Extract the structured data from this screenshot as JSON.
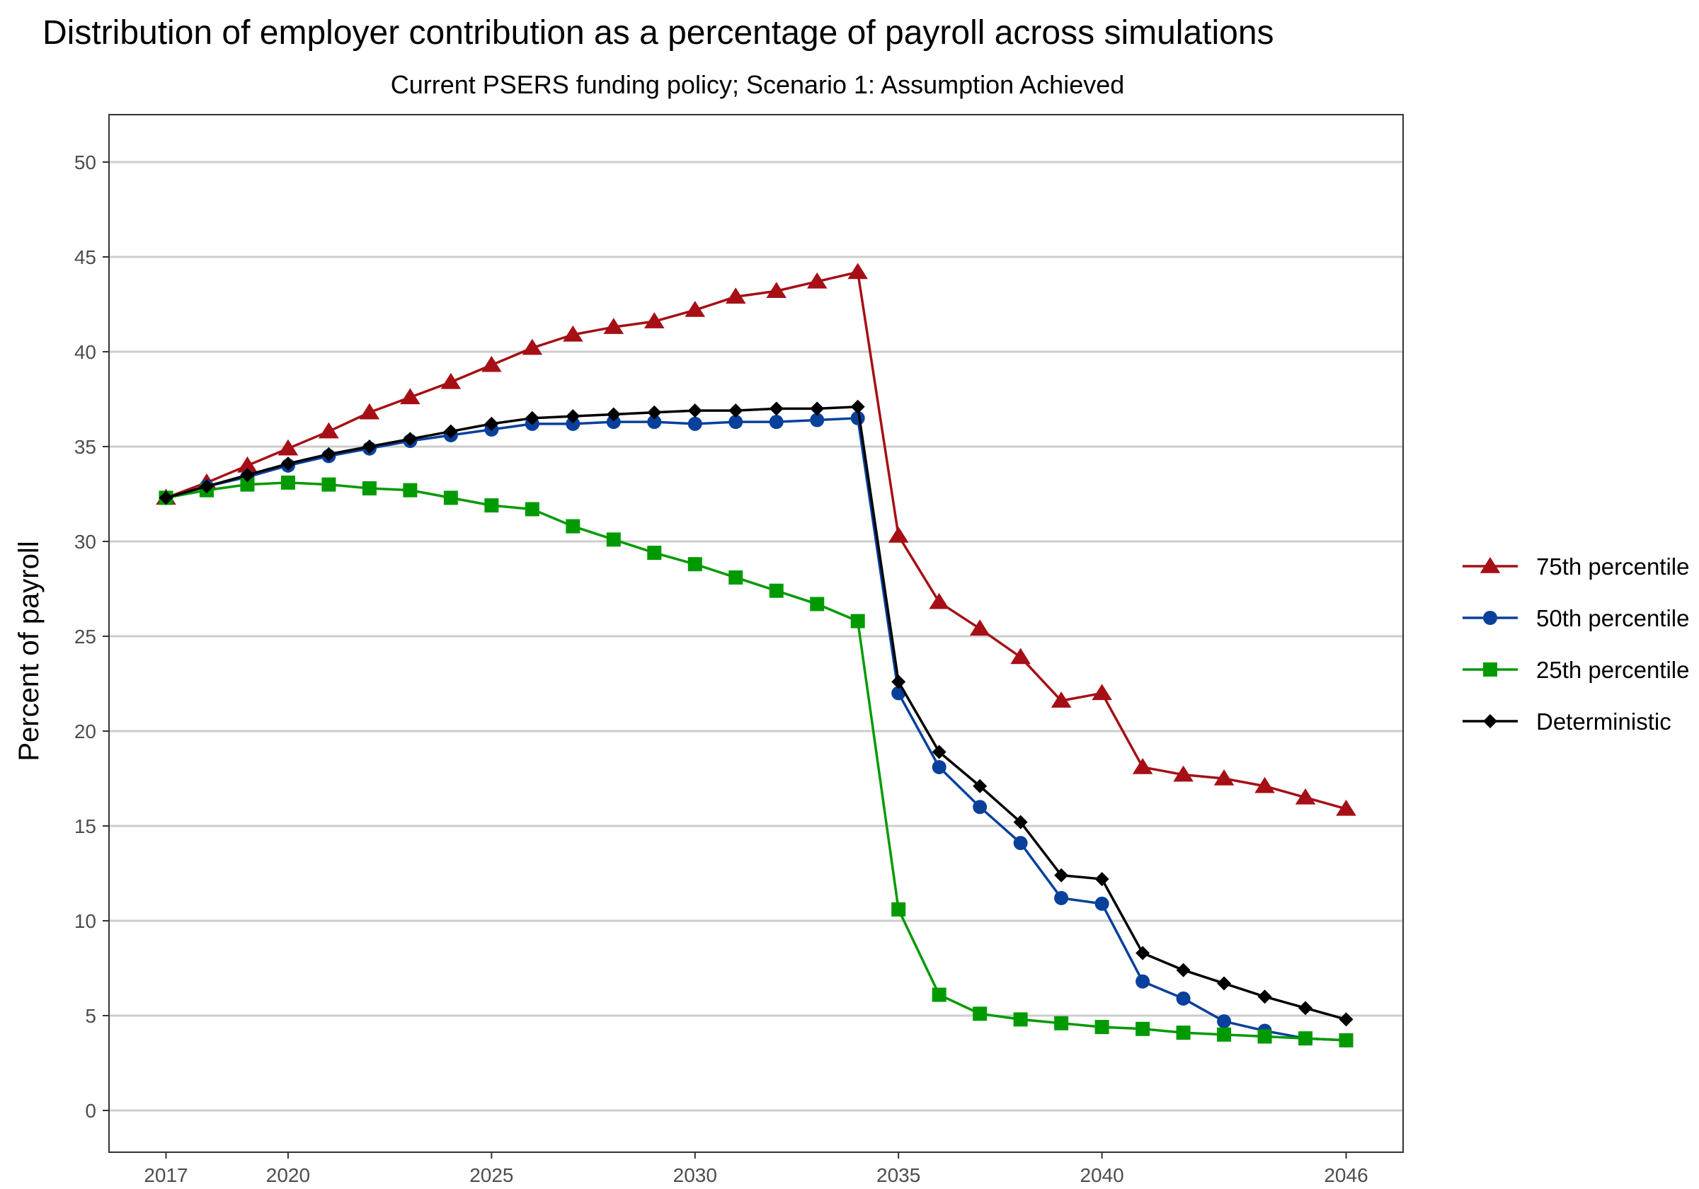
{
  "chart_data": {
    "type": "line",
    "title": "Distribution of employer contribution as a percentage of payroll across simulations",
    "subtitle": "Current PSERS funding policy; Scenario 1: Assumption Achieved",
    "xlabel": "",
    "ylabel": "Percent of payroll",
    "xlim": [
      2015.6,
      2047.4
    ],
    "ylim": [
      -2.2,
      52.5
    ],
    "grid": "horizontal major",
    "legend_position": "right",
    "x_ticks": [
      2017,
      2020,
      2025,
      2030,
      2035,
      2040,
      2046
    ],
    "y_ticks": [
      0,
      5,
      10,
      15,
      20,
      25,
      30,
      35,
      40,
      45,
      50
    ],
    "x": [
      2017,
      2018,
      2019,
      2020,
      2021,
      2022,
      2023,
      2024,
      2025,
      2026,
      2027,
      2028,
      2029,
      2030,
      2031,
      2032,
      2033,
      2034,
      2035,
      2036,
      2037,
      2038,
      2039,
      2040,
      2041,
      2042,
      2043,
      2044,
      2045,
      2046
    ],
    "series": [
      {
        "name": "75th percentile",
        "color": "#a50f15",
        "marker": "triangle",
        "values": [
          32.3,
          33.1,
          34.0,
          34.9,
          35.8,
          36.8,
          37.6,
          38.4,
          39.3,
          40.2,
          40.9,
          41.3,
          41.6,
          42.2,
          42.9,
          43.2,
          43.7,
          44.2,
          30.3,
          26.8,
          25.4,
          23.9,
          21.6,
          22.0,
          18.1,
          17.7,
          17.5,
          17.1,
          16.5,
          15.9
        ]
      },
      {
        "name": "50th percentile",
        "color": "#08409c",
        "marker": "circle",
        "values": [
          32.3,
          32.9,
          33.4,
          34.0,
          34.5,
          34.9,
          35.3,
          35.6,
          35.9,
          36.2,
          36.2,
          36.3,
          36.3,
          36.2,
          36.3,
          36.3,
          36.4,
          36.5,
          22.0,
          18.1,
          16.0,
          14.1,
          11.2,
          10.9,
          6.8,
          5.9,
          4.7,
          4.2,
          3.8,
          3.7
        ]
      },
      {
        "name": "25th percentile",
        "color": "#009a00",
        "marker": "square",
        "values": [
          32.3,
          32.7,
          33.0,
          33.1,
          33.0,
          32.8,
          32.7,
          32.3,
          31.9,
          31.7,
          30.8,
          30.1,
          29.4,
          28.8,
          28.1,
          27.4,
          26.7,
          25.8,
          10.6,
          6.1,
          5.1,
          4.8,
          4.6,
          4.4,
          4.3,
          4.1,
          4.0,
          3.9,
          3.8,
          3.7
        ]
      },
      {
        "name": "Deterministic",
        "color": "#000000",
        "marker": "diamond",
        "values": [
          32.3,
          32.9,
          33.5,
          34.1,
          34.6,
          35.0,
          35.4,
          35.8,
          36.2,
          36.5,
          36.6,
          36.7,
          36.8,
          36.9,
          36.9,
          37.0,
          37.0,
          37.1,
          22.6,
          18.9,
          17.1,
          15.2,
          12.4,
          12.2,
          8.3,
          7.4,
          6.7,
          6.0,
          5.4,
          4.8
        ]
      }
    ]
  }
}
